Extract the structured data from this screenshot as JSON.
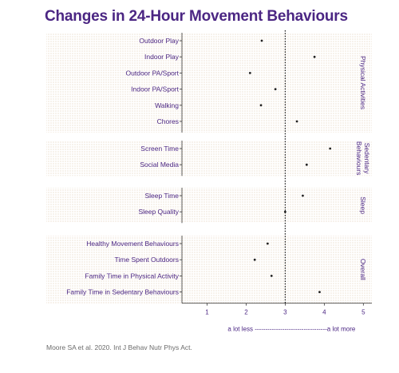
{
  "title": "Changes in 24-Hour Movement Behaviours",
  "source": "Moore SA et al. 2020. Int J Behav Nutr Phys Act.",
  "colors": {
    "title": "#4b2683",
    "text": "#4b2683",
    "panel_dots": "#d9c2a0",
    "marker": "#222222",
    "axis": "#333333",
    "reference_line": "#111111"
  },
  "chart_data": {
    "type": "scatter",
    "title": "Changes in 24-Hour Movement Behaviours",
    "xlim": [
      0.5,
      5.3
    ],
    "xticks": [
      1,
      2,
      3,
      4,
      5
    ],
    "reference_x": 3,
    "scale_caption": "a lot less ----------------------------------a lot more",
    "groups": [
      {
        "name": "Physical Activities",
        "items": [
          {
            "label": "Outdoor Play",
            "x": 2.4
          },
          {
            "label": "Indoor Play",
            "x": 3.75
          },
          {
            "label": "Outdoor PA/Sport",
            "x": 2.1
          },
          {
            "label": "Indoor PA/Sport",
            "x": 2.75
          },
          {
            "label": "Walking",
            "x": 2.38
          },
          {
            "label": "Chores",
            "x": 3.3
          }
        ]
      },
      {
        "name": "Sedentary Behaviours",
        "items": [
          {
            "label": "Screen Time",
            "x": 4.15
          },
          {
            "label": "Social Media",
            "x": 3.55
          }
        ]
      },
      {
        "name": "Sleep",
        "items": [
          {
            "label": "Sleep Time",
            "x": 3.45
          },
          {
            "label": "Sleep Quality",
            "x": 3.0
          }
        ]
      },
      {
        "name": "Overall",
        "items": [
          {
            "label": "Healthy Movement Behaviours",
            "x": 2.55
          },
          {
            "label": "Time Spent Outdoors",
            "x": 2.22
          },
          {
            "label": "Family Time in Physical Activity",
            "x": 2.65
          },
          {
            "label": "Family Time in Sedentary Behaviours",
            "x": 3.88
          }
        ]
      }
    ]
  }
}
